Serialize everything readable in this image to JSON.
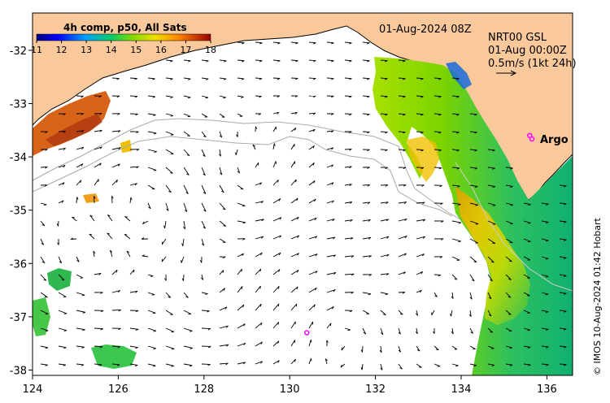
{
  "map": {
    "colorbar_title": "4h comp, p50, All Sats",
    "colorbar_ticks": [
      "11",
      "12",
      "13",
      "14",
      "15",
      "16",
      "17",
      "18"
    ],
    "colorbar_min": 11,
    "colorbar_max": 18,
    "date_label": "01-Aug-2024 08Z",
    "product_label": "NRT00 GSL",
    "current_date": "01-Aug 00:00Z",
    "vector_scale": "0.5m/s (1kt 24h)",
    "argo_label": "Argo",
    "credit": "© IMOS 10-Aug-2024 01:42 Hobart",
    "x_ticks": [
      "124",
      "126",
      "128",
      "130",
      "132",
      "134",
      "136"
    ],
    "y_ticks": [
      "-32",
      "-33",
      "-34",
      "-35",
      "-36",
      "-37",
      "-38"
    ],
    "lon_range": [
      124,
      136.6
    ],
    "lat_range": [
      -38.1,
      -31.3
    ],
    "argo_floats": [
      {
        "lon": 135.6,
        "lat": -33.6
      },
      {
        "lon": 130.4,
        "lat": -37.3
      }
    ],
    "colors": {
      "land": "#f9c89b",
      "coast": "#000000",
      "contour": "#aaaaaa",
      "argo": "#ff00ff"
    }
  }
}
